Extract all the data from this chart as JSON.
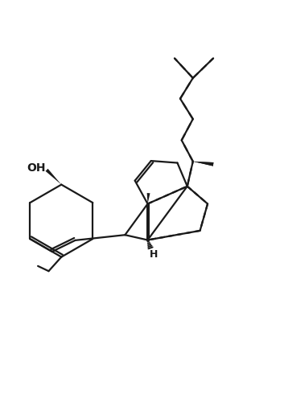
{
  "background_color": "#ffffff",
  "line_color": "#1a1a1a",
  "line_width": 1.6,
  "fig_width": 3.53,
  "fig_height": 5.0,
  "dpi": 100,
  "OH_label": "OH",
  "H_label": "H"
}
